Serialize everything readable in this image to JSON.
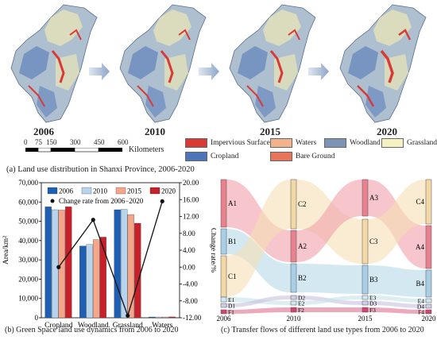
{
  "panel_a": {
    "years": [
      "2006",
      "2010",
      "2015",
      "2020"
    ],
    "scale_ticks": [
      "0",
      "75",
      "150",
      "300",
      "450",
      "600"
    ],
    "scale_unit": "Kilometers",
    "legend": [
      {
        "label": "Impervious Surface",
        "color": "#d93a34"
      },
      {
        "label": "Waters",
        "color": "#f2b28a"
      },
      {
        "label": "Woodland",
        "color": "#7d93b6"
      },
      {
        "label": "Grassland",
        "color": "#f5f1c2"
      },
      {
        "label": "Cropland",
        "color": "#4d73b8"
      },
      {
        "label": "Bare Ground",
        "color": "#e8745a"
      }
    ],
    "caption": "(a) Land use distribution in Shanxi Province, 2006-2020"
  },
  "chart_data": [
    {
      "type": "bar",
      "title": "",
      "categories": [
        "Cropland",
        "Woodland",
        "Grassland",
        "Waters"
      ],
      "series": [
        {
          "name": "2006",
          "values": [
            57500,
            37200,
            56000,
            400
          ],
          "color": "#1f5fb3"
        },
        {
          "name": "2010",
          "values": [
            56000,
            38000,
            56200,
            400
          ],
          "color": "#b7d4ee"
        },
        {
          "name": "2015",
          "values": [
            55800,
            40500,
            53500,
            400
          ],
          "color": "#f4a58a"
        },
        {
          "name": "2020",
          "values": [
            57500,
            41800,
            49000,
            450
          ],
          "color": "#c8202a"
        }
      ],
      "line_series": {
        "name": "Change rate from 2006−2020",
        "values": [
          0.0,
          11.2,
          -11.5,
          15.6
        ],
        "color": "#111111"
      },
      "ylabel_left": "Area/km²",
      "ylabel_right": "Change rate/%",
      "ylim_left": [
        0,
        70000
      ],
      "ylim_right": [
        -12,
        20
      ],
      "yticks_left": [
        "0",
        "10,000",
        "20,000",
        "30,000",
        "40,000",
        "50,000",
        "60,000",
        "70,000"
      ],
      "yticks_right": [
        "-12.00",
        "-8.00",
        "-4.00",
        "0.00",
        "4.00",
        "8.00",
        "12.00",
        "16.00",
        "20.00"
      ],
      "legend_placement": "top-left",
      "caption": "(b) Green Space land use dynamics from 2006 to 2020"
    },
    {
      "type": "sankey",
      "columns": [
        {
          "year": "2006",
          "nodes": [
            "A1",
            "B1",
            "C1",
            "E1",
            "D1",
            "F1"
          ]
        },
        {
          "year": "2010",
          "nodes": [
            "C2",
            "A2",
            "B2",
            "D2",
            "E2",
            "F2"
          ]
        },
        {
          "year": "2015",
          "nodes": [
            "A3",
            "C3",
            "B3",
            "E3",
            "D3",
            "F3"
          ]
        },
        {
          "year": "2020",
          "nodes": [
            "C4",
            "A4",
            "B4",
            "E4",
            "D4",
            "F4"
          ]
        }
      ],
      "caption": "(c) Transfer flows of different land use types from 2006 to 2020"
    }
  ]
}
